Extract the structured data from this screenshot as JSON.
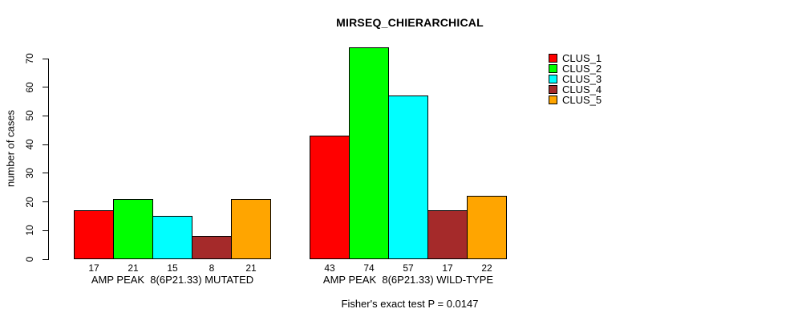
{
  "title": "MIRSEQ_CHIERARCHICAL",
  "y_axis": {
    "label": "number of cases",
    "ticks": [
      0,
      10,
      20,
      30,
      40,
      50,
      60,
      70
    ]
  },
  "footer": "Fisher's exact test P = 0.0147",
  "legend": {
    "position": "top-right",
    "items": [
      {
        "label": "CLUS_1",
        "color": "#ff0000"
      },
      {
        "label": "CLUS_2",
        "color": "#00ff00"
      },
      {
        "label": "CLUS_3",
        "color": "#00ffff"
      },
      {
        "label": "CLUS_4",
        "color": "#a52a2a"
      },
      {
        "label": "CLUS_5",
        "color": "#ffa500"
      }
    ]
  },
  "chart_data": {
    "type": "bar",
    "title": "MIRSEQ_CHIERARCHICAL",
    "categories": [
      "CLUS_1",
      "CLUS_2",
      "CLUS_3",
      "CLUS_4",
      "CLUS_5"
    ],
    "colors": [
      "#ff0000",
      "#00ff00",
      "#00ffff",
      "#a52a2a",
      "#ffa500"
    ],
    "groups": [
      {
        "label": "AMP PEAK  8(6P21.33) MUTATED",
        "values": [
          17,
          21,
          15,
          8,
          21
        ]
      },
      {
        "label": "AMP PEAK  8(6P21.33) WILD-TYPE",
        "values": [
          43,
          74,
          57,
          17,
          22
        ]
      }
    ],
    "xlabel": "",
    "ylabel": "number of cases",
    "ylim": [
      0,
      74
    ],
    "yticks": [
      0,
      10,
      20,
      30,
      40,
      50,
      60,
      70
    ],
    "bar_value_labels_shown": true,
    "grid": false,
    "legend_position": "top-right",
    "annotation": "Fisher's exact test P = 0.0147"
  }
}
